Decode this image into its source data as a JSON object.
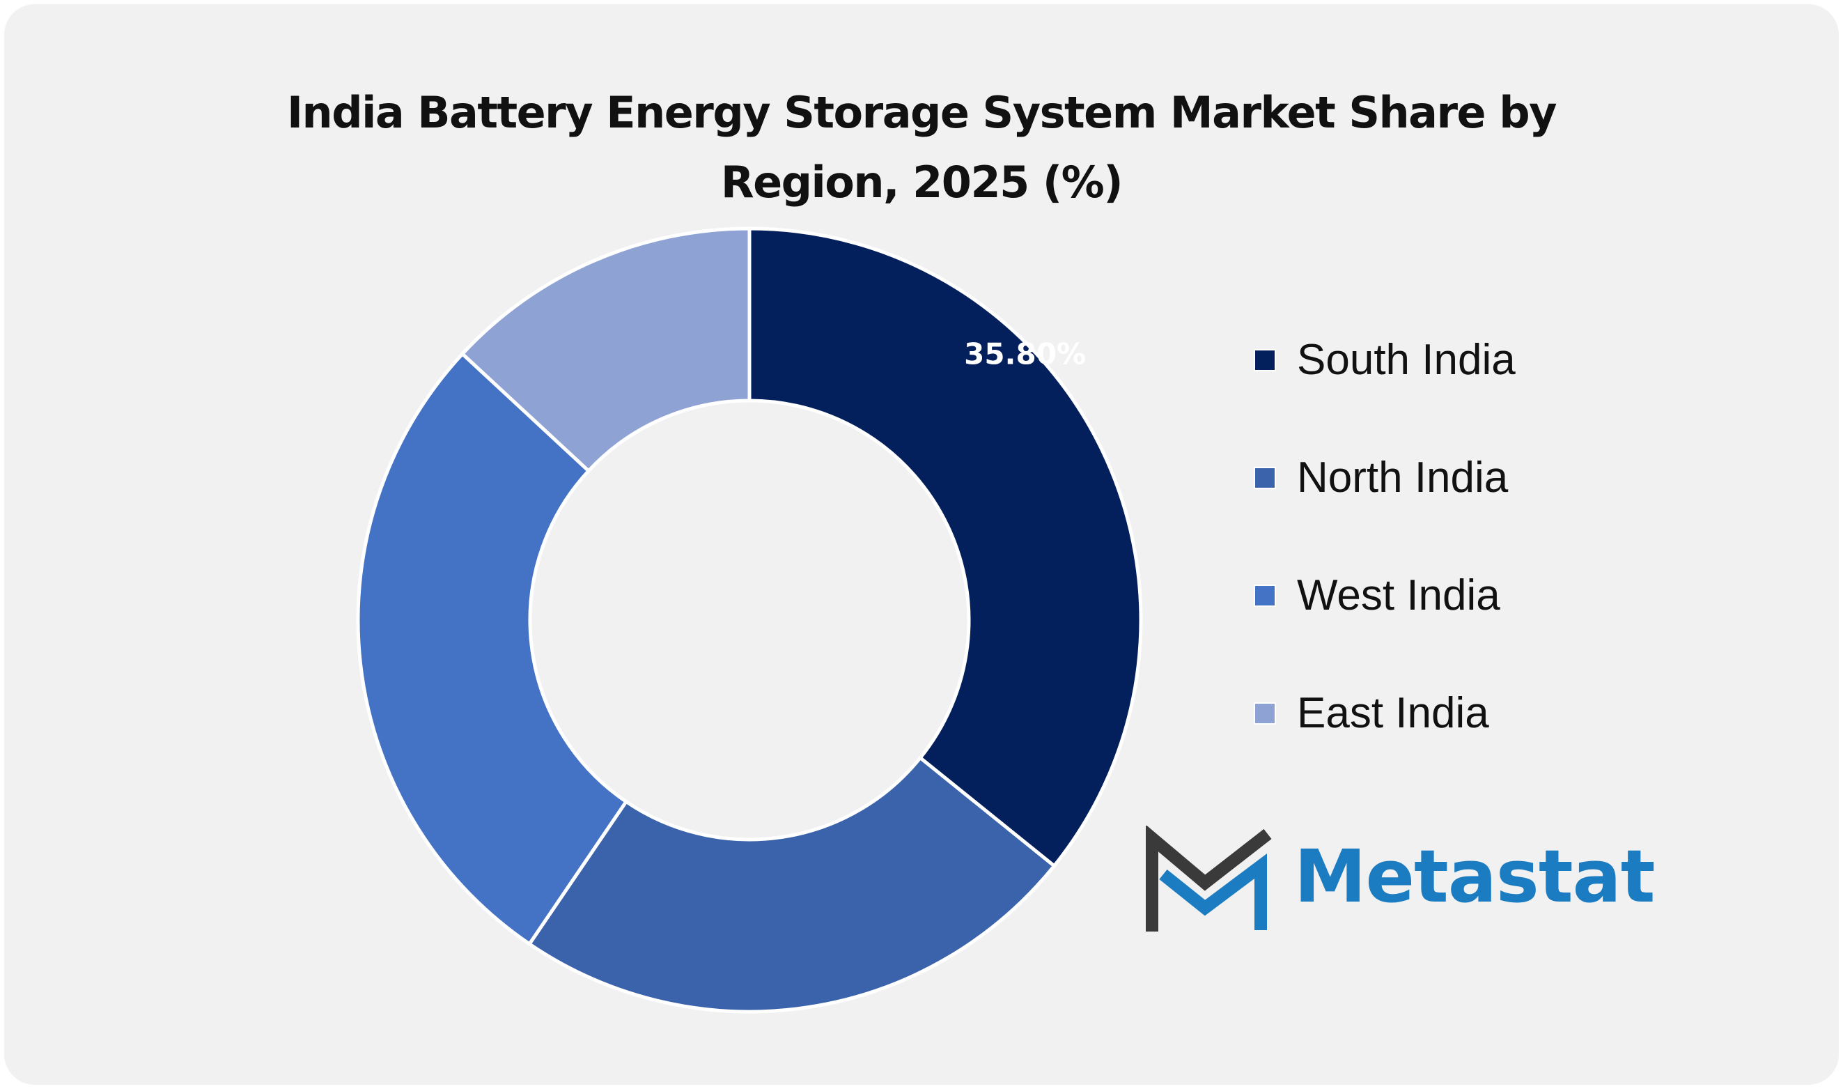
{
  "title_lines": [
    "India Battery Energy Storage System Market Share by",
    "Region, 2025 (%)"
  ],
  "chart_data": {
    "type": "pie",
    "variant": "donut",
    "title": "India Battery Energy Storage System Market Share by Region, 2025 (%)",
    "categories": [
      "South India",
      "North India",
      "West India",
      "East India"
    ],
    "values": [
      35.8,
      23.7,
      27.4,
      13.1
    ],
    "labels": [
      "35.80%",
      null,
      null,
      null
    ],
    "colors": [
      "#031f5c",
      "#3b63ac",
      "#4472c4",
      "#8ea2d4"
    ],
    "legend_position": "right"
  },
  "logo": {
    "text": "Metastat",
    "color": "#1b7cc1",
    "mark_color": "#3a3a3a"
  }
}
